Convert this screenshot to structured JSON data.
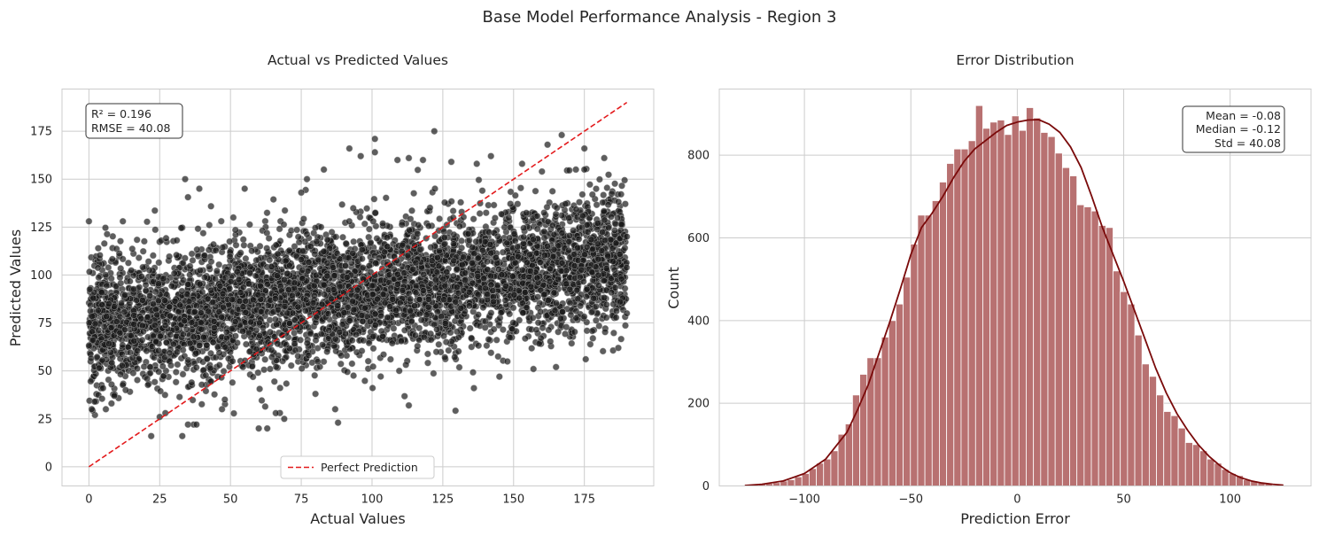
{
  "figure": {
    "title": "Base Model Performance Analysis - Region 3"
  },
  "chart_data": [
    {
      "type": "scatter",
      "title": "Actual vs Predicted Values",
      "xlabel": "Actual Values",
      "ylabel": "Predicted Values",
      "xlim": [
        -9.5,
        199.5
      ],
      "ylim": [
        -10,
        197
      ],
      "xticks": [
        "0",
        "25",
        "50",
        "75",
        "100",
        "125",
        "150",
        "175"
      ],
      "yticks": [
        "0",
        "25",
        "50",
        "75",
        "100",
        "125",
        "150",
        "175"
      ],
      "grid": true,
      "legend": {
        "placement": "lower-center",
        "entries": [
          "Perfect Prediction"
        ]
      },
      "annotation": {
        "placement": "top-left",
        "lines": [
          "R² = 0.196",
          "RMSE = 40.08"
        ]
      },
      "point_color": "#1a1a1a",
      "point_edge_color": "#b0b0b0",
      "series": [
        {
          "name": "points",
          "description": "dense cloud of ~20000 points, actual uniform 0–190, predicted approx 73 + 0.19*actual with spread",
          "sample_points": [
            [
              0,
              128
            ],
            [
              1,
              30
            ],
            [
              2,
              34
            ],
            [
              5,
              41
            ],
            [
              6,
              30
            ],
            [
              8,
              33
            ],
            [
              9,
              37
            ],
            [
              12,
              128
            ],
            [
              13,
              40
            ],
            [
              22,
              16
            ],
            [
              25,
              26
            ],
            [
              27,
              28
            ],
            [
              33,
              16
            ],
            [
              34,
              150
            ],
            [
              35,
              22
            ],
            [
              37,
              22
            ],
            [
              38,
              22
            ],
            [
              39,
              145
            ],
            [
              47,
              30
            ],
            [
              48,
              35
            ],
            [
              51,
              130
            ],
            [
              55,
              145
            ],
            [
              60,
              20
            ],
            [
              63,
              20
            ],
            [
              66,
              28
            ],
            [
              69,
              25
            ],
            [
              75,
              143
            ],
            [
              77,
              150
            ],
            [
              80,
              38
            ],
            [
              83,
              155
            ],
            [
              87,
              30
            ],
            [
              88,
              23
            ],
            [
              92,
              166
            ],
            [
              96,
              162
            ],
            [
              101,
              164
            ],
            [
              101,
              171
            ],
            [
              109,
              160
            ],
            [
              113,
              161
            ],
            [
              113,
              32
            ],
            [
              118,
              160
            ],
            [
              122,
              175
            ],
            [
              128,
              159
            ],
            [
              136,
              41
            ],
            [
              137,
              158
            ],
            [
              142,
              162
            ],
            [
              145,
              47
            ],
            [
              153,
              158
            ],
            [
              157,
              51
            ],
            [
              160,
              154
            ],
            [
              162,
              168
            ],
            [
              165,
              52
            ],
            [
              167,
              173
            ],
            [
              172,
              155
            ],
            [
              175,
              155
            ],
            [
              175,
              166
            ],
            [
              178,
              67
            ],
            [
              182,
              161
            ],
            [
              187,
              62
            ],
            [
              190,
              80
            ],
            [
              190,
              120
            ]
          ]
        },
        {
          "name": "Perfect Prediction",
          "line": [
            [
              0,
              0
            ],
            [
              190,
              190
            ]
          ],
          "color": "#e31a1c",
          "dashed": true
        }
      ]
    },
    {
      "type": "bar",
      "title": "Error Distribution",
      "xlabel": "Prediction Error",
      "ylabel": "Count",
      "xlim": [
        -140,
        138
      ],
      "ylim": [
        0,
        960
      ],
      "xticks": [
        "−100",
        "−50",
        "0",
        "50",
        "100"
      ],
      "yticks": [
        "0",
        "200",
        "400",
        "600",
        "800"
      ],
      "grid": true,
      "annotation": {
        "placement": "top-right",
        "lines": [
          "Mean = -0.08",
          "Median = -0.12",
          "Std = 40.08"
        ]
      },
      "bar_color": "#b87171",
      "bar_edge_color": "#ffffff",
      "kde_color": "#7a0a0a",
      "bins": {
        "start": -128.4,
        "width": 3.4
      },
      "values": [
        2,
        3,
        4,
        6,
        8,
        12,
        15,
        22,
        30,
        42,
        55,
        65,
        85,
        125,
        150,
        220,
        270,
        310,
        310,
        360,
        400,
        440,
        505,
        585,
        655,
        655,
        690,
        735,
        780,
        815,
        815,
        835,
        920,
        865,
        880,
        885,
        850,
        895,
        860,
        915,
        890,
        855,
        845,
        805,
        770,
        750,
        680,
        675,
        665,
        630,
        625,
        520,
        470,
        440,
        365,
        295,
        265,
        220,
        180,
        170,
        140,
        105,
        100,
        85,
        65,
        55,
        40,
        30,
        25,
        15,
        12,
        8,
        5,
        2
      ],
      "kde": [
        [
          -128,
          1
        ],
        [
          -120,
          4
        ],
        [
          -110,
          12
        ],
        [
          -100,
          30
        ],
        [
          -90,
          65
        ],
        [
          -80,
          130
        ],
        [
          -75,
          185
        ],
        [
          -70,
          245
        ],
        [
          -65,
          320
        ],
        [
          -60,
          395
        ],
        [
          -55,
          475
        ],
        [
          -50,
          560
        ],
        [
          -45,
          625
        ],
        [
          -40,
          660
        ],
        [
          -35,
          700
        ],
        [
          -30,
          745
        ],
        [
          -25,
          785
        ],
        [
          -20,
          815
        ],
        [
          -15,
          835
        ],
        [
          -10,
          855
        ],
        [
          -5,
          872
        ],
        [
          0,
          880
        ],
        [
          5,
          885
        ],
        [
          10,
          886
        ],
        [
          15,
          875
        ],
        [
          20,
          855
        ],
        [
          25,
          820
        ],
        [
          30,
          770
        ],
        [
          35,
          700
        ],
        [
          40,
          625
        ],
        [
          45,
          560
        ],
        [
          50,
          495
        ],
        [
          55,
          425
        ],
        [
          60,
          355
        ],
        [
          65,
          285
        ],
        [
          70,
          225
        ],
        [
          75,
          175
        ],
        [
          80,
          135
        ],
        [
          85,
          100
        ],
        [
          90,
          72
        ],
        [
          95,
          50
        ],
        [
          100,
          32
        ],
        [
          105,
          20
        ],
        [
          110,
          12
        ],
        [
          115,
          7
        ],
        [
          120,
          4
        ],
        [
          125,
          2
        ]
      ]
    }
  ]
}
